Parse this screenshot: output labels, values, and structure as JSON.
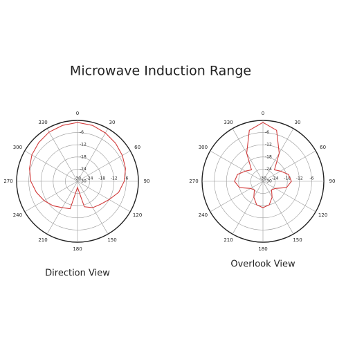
{
  "title": "Microwave Induction Range",
  "chart_data": [
    {
      "type": "polar",
      "title": "Direction View",
      "color": "#d23a3a",
      "theta": [
        0,
        15,
        30,
        45,
        60,
        75,
        90,
        105,
        120,
        135,
        150,
        165,
        180,
        195,
        210,
        225,
        240,
        255,
        270,
        285,
        300,
        315,
        330,
        345
      ],
      "values": [
        -1,
        -1.5,
        -2.5,
        -3.5,
        -4.5,
        -5.5,
        -7,
        -9,
        -12,
        -14,
        -15,
        -17,
        -27,
        -16,
        -15,
        -13,
        -11,
        -9,
        -7,
        -5.5,
        -4,
        -3,
        -2,
        -1.5
      ],
      "rlim": [
        -30,
        0
      ],
      "rticks": [
        -30,
        -24,
        -18,
        -12,
        -6
      ],
      "thetaticks": [
        0,
        30,
        60,
        90,
        120,
        150,
        180,
        210,
        240,
        270,
        300,
        330
      ]
    },
    {
      "type": "polar",
      "title": "Overlook View",
      "color": "#d23a3a",
      "theta": [
        0,
        15,
        30,
        45,
        60,
        75,
        90,
        105,
        120,
        135,
        150,
        165,
        180,
        195,
        210,
        225,
        240,
        255,
        270,
        285,
        300,
        315,
        330,
        345
      ],
      "values": [
        -1,
        -4,
        -14,
        -22,
        -20,
        -17,
        -16,
        -18,
        -23,
        -24,
        -21,
        -18,
        -17,
        -18,
        -21,
        -24,
        -23,
        -18,
        -16,
        -17,
        -20,
        -22,
        -14,
        -4
      ],
      "rlim": [
        -30,
        0
      ],
      "rticks": [
        -30,
        -24,
        -18,
        -12,
        -6
      ],
      "thetaticks": [
        0,
        30,
        60,
        90,
        120,
        150,
        180,
        210,
        240,
        270,
        300,
        330
      ]
    }
  ]
}
